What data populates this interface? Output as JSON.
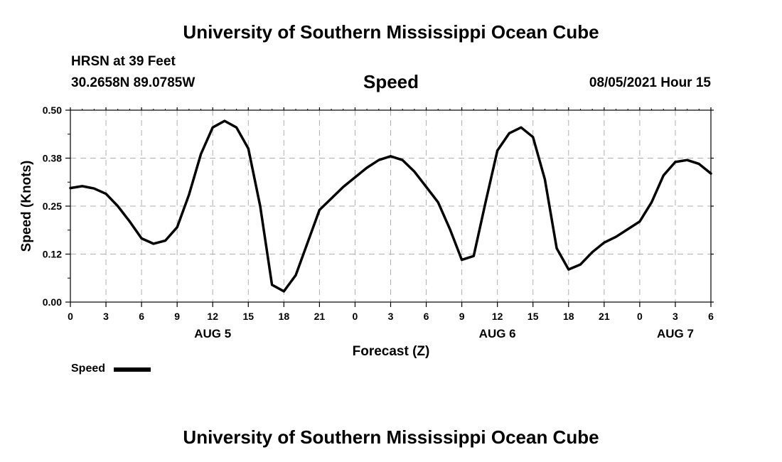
{
  "header": {
    "title": "University of Southern Mississippi Ocean Cube",
    "station": "HRSN at 39 Feet",
    "coordinates": "30.2658N  89.0785W",
    "variable": "Speed",
    "datetime": "08/05/2021 Hour 15"
  },
  "footer": {
    "title": "University of Southern Mississippi Ocean Cube"
  },
  "legend": {
    "label": "Speed",
    "color": "#000000"
  },
  "chart_data": {
    "type": "line",
    "title": "Speed",
    "xlabel": "Forecast (Z)",
    "ylabel": "Speed (Knots)",
    "xlim": [
      0,
      54
    ],
    "ylim": [
      0,
      0.5
    ],
    "grid": true,
    "legend_position": "bottom-left",
    "x_ticks": [
      0,
      3,
      6,
      9,
      12,
      15,
      18,
      21,
      24,
      27,
      30,
      33,
      36,
      39,
      42,
      45,
      48,
      51,
      54
    ],
    "x_tick_labels": [
      "0",
      "3",
      "6",
      "9",
      "12",
      "15",
      "18",
      "21",
      "0",
      "3",
      "6",
      "9",
      "12",
      "15",
      "18",
      "21",
      "0",
      "3",
      "6"
    ],
    "y_ticks": [
      0,
      0.125,
      0.25,
      0.375,
      0.5
    ],
    "y_tick_labels": [
      "0.00",
      "0.12",
      "0.25",
      "0.38",
      "0.50"
    ],
    "date_labels": [
      {
        "label": "AUG 5",
        "x": 12
      },
      {
        "label": "AUG 6",
        "x": 36
      },
      {
        "label": "AUG 7",
        "x": 51
      }
    ],
    "series": [
      {
        "name": "Speed",
        "color": "#000000",
        "x": [
          0,
          1,
          2,
          3,
          4,
          5,
          6,
          7,
          8,
          9,
          10,
          11,
          12,
          13,
          14,
          15,
          16,
          17,
          18,
          19,
          20,
          21,
          22,
          23,
          24,
          25,
          26,
          27,
          28,
          29,
          30,
          31,
          32,
          33,
          34,
          35,
          36,
          37,
          38,
          39,
          40,
          41,
          42,
          43,
          44,
          45,
          46,
          47,
          48,
          49,
          50,
          51,
          52,
          53,
          54
        ],
        "values": [
          0.297,
          0.302,
          0.296,
          0.282,
          0.25,
          0.21,
          0.166,
          0.152,
          0.16,
          0.195,
          0.28,
          0.385,
          0.455,
          0.472,
          0.455,
          0.4,
          0.25,
          0.045,
          0.028,
          0.07,
          0.155,
          0.24,
          0.27,
          0.3,
          0.325,
          0.35,
          0.37,
          0.38,
          0.37,
          0.34,
          0.3,
          0.26,
          0.19,
          0.11,
          0.12,
          0.26,
          0.395,
          0.44,
          0.455,
          0.43,
          0.32,
          0.14,
          0.085,
          0.098,
          0.13,
          0.155,
          0.17,
          0.19,
          0.21,
          0.26,
          0.33,
          0.365,
          0.37,
          0.36,
          0.335
        ]
      }
    ]
  }
}
